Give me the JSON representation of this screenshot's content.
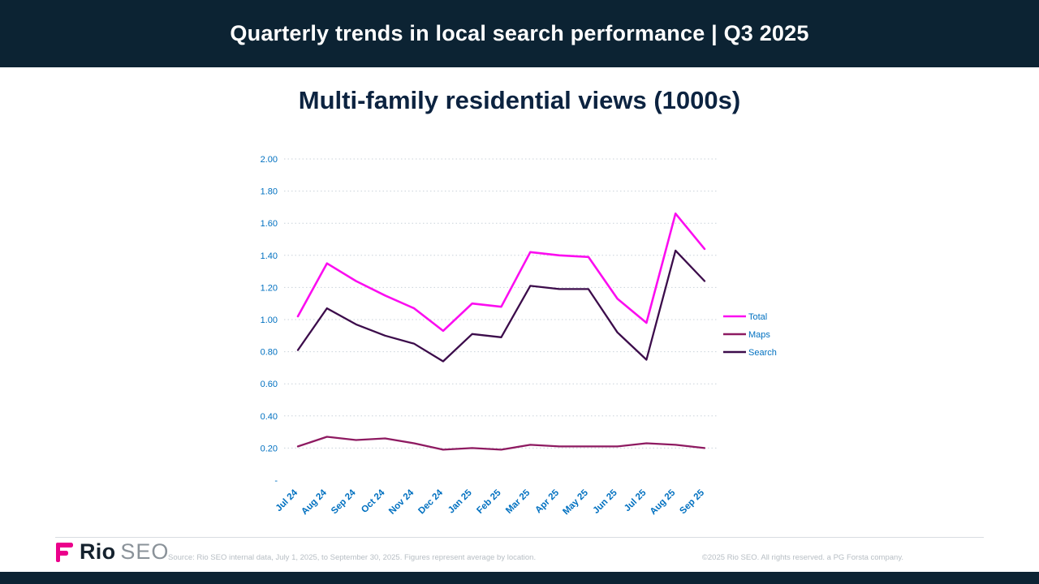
{
  "header": {
    "title": "Quarterly trends in local search performance | Q3 2025"
  },
  "main": {
    "title": "Multi-family residential views (1000s)"
  },
  "chart_data": {
    "type": "line",
    "title": "Multi-family residential views (1000s)",
    "categories": [
      "Jul 24",
      "Aug 24",
      "Sep 24",
      "Oct 24",
      "Nov 24",
      "Dec 24",
      "Jan 25",
      "Feb 25",
      "Mar 25",
      "Apr 25",
      "May 25",
      "Jun 25",
      "Jul 25",
      "Aug 25",
      "Sep 25"
    ],
    "series": [
      {
        "name": "Total",
        "color": "#fb0df0",
        "values": [
          1.02,
          1.35,
          1.24,
          1.15,
          1.07,
          0.93,
          1.1,
          1.08,
          1.42,
          1.4,
          1.39,
          1.13,
          0.98,
          1.66,
          1.44
        ]
      },
      {
        "name": "Maps",
        "color": "#8e1a61",
        "values": [
          0.21,
          0.27,
          0.25,
          0.26,
          0.23,
          0.19,
          0.2,
          0.19,
          0.22,
          0.21,
          0.21,
          0.21,
          0.23,
          0.22,
          0.2
        ]
      },
      {
        "name": "Search",
        "color": "#3c0c4b",
        "values": [
          0.81,
          1.07,
          0.97,
          0.9,
          0.85,
          0.74,
          0.91,
          0.89,
          1.21,
          1.19,
          1.19,
          0.92,
          0.75,
          1.43,
          1.24
        ]
      }
    ],
    "ylim": [
      0,
      2.0
    ],
    "ytick_step": 0.2,
    "ytick_labels": [
      "-",
      "0.20",
      "0.40",
      "0.60",
      "0.80",
      "1.00",
      "1.20",
      "1.40",
      "1.60",
      "1.80",
      "2.00"
    ],
    "axis_label_color": "#0070c0",
    "gridline_color": "#c9d2da",
    "grid": "dotted horizontal",
    "legend_position": "right",
    "legend_entries": [
      "Total",
      "Maps",
      "Search"
    ]
  },
  "footer": {
    "logo": {
      "brand": "Rio",
      "suffix": "SEO",
      "accent_color": "#eb008b"
    },
    "source": "Source: Rio SEO internal data, July 1, 2025, to September 30, 2025. Figures represent average by location.",
    "copyright": "©2025 Rio SEO.  All rights reserved. a PG Forsta company."
  }
}
